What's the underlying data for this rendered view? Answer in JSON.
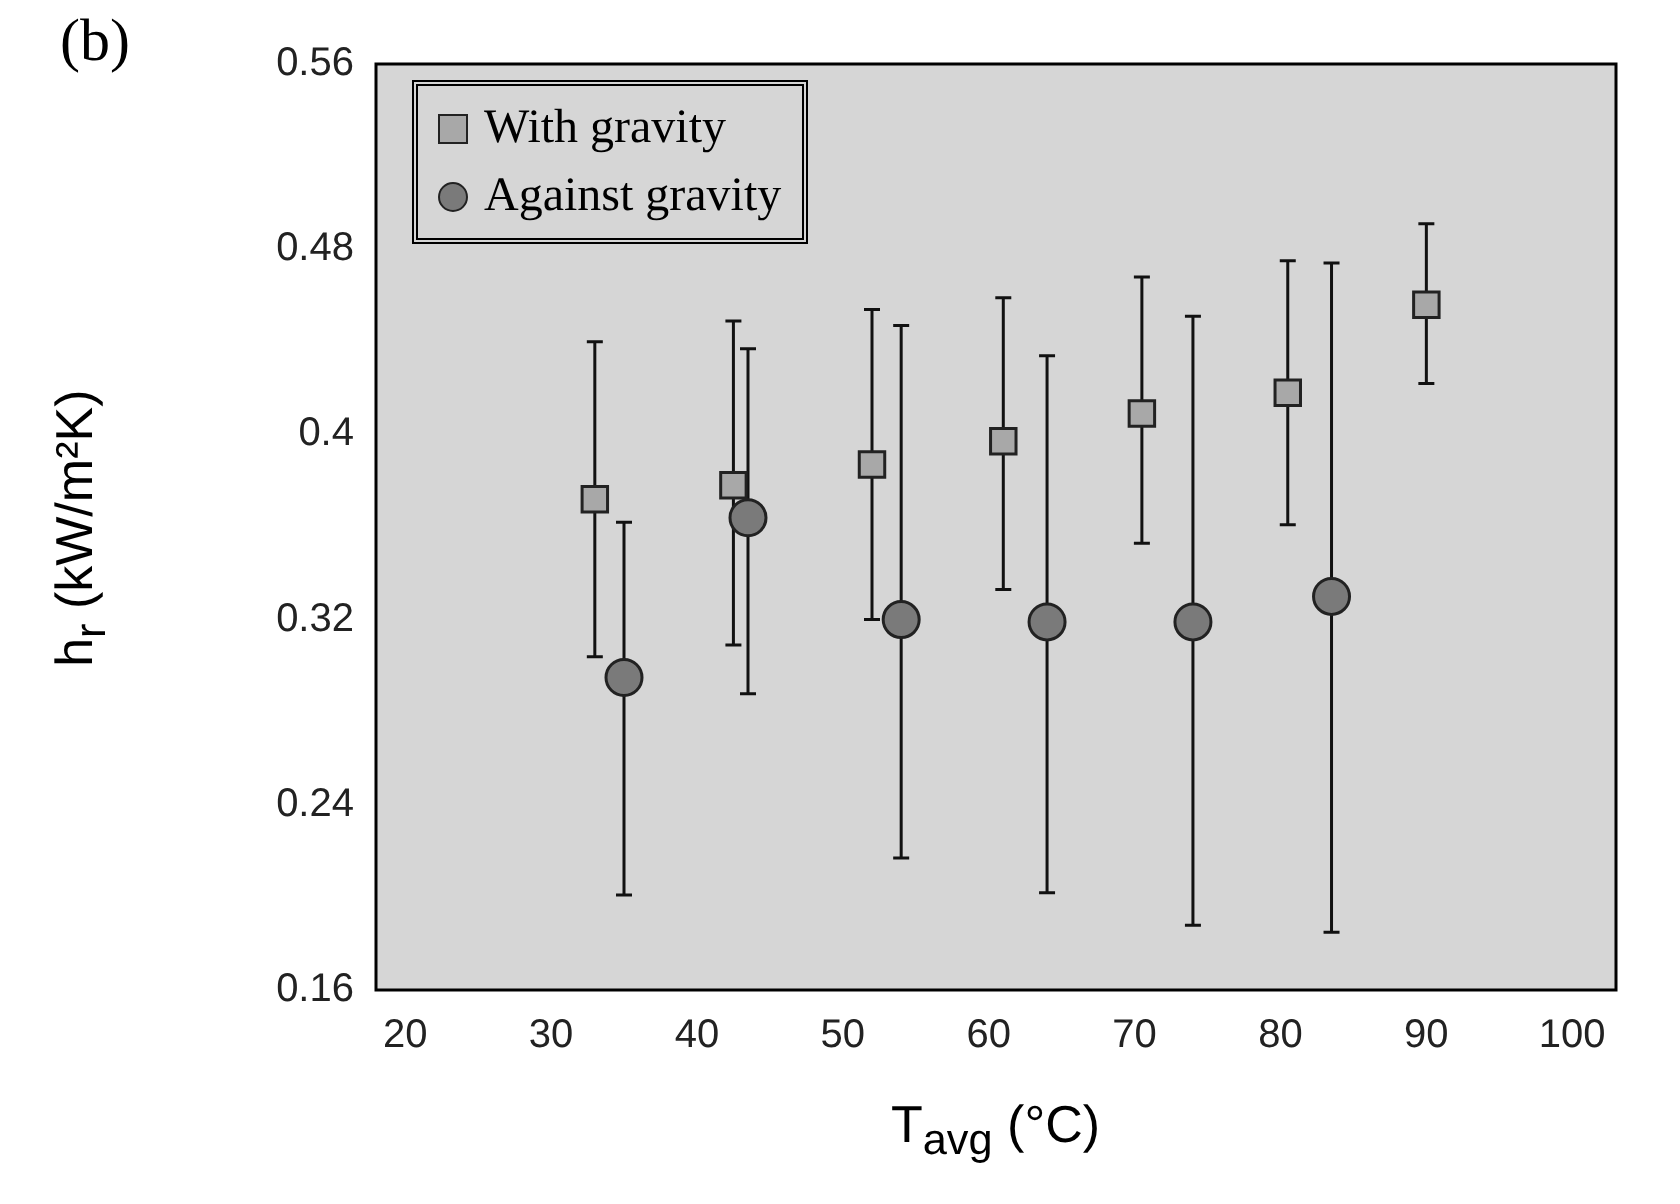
{
  "chart_data": {
    "type": "scatter",
    "title": "(b)",
    "xlabel": "T$_{avg}$ (°C)",
    "ylabel": "h$_{r}$ (kW/m²K)",
    "xlim": [
      18,
      103
    ],
    "xticks": [
      20,
      30,
      40,
      50,
      60,
      70,
      80,
      90,
      100
    ],
    "ylim": [
      0.16,
      0.56
    ],
    "yticks": [
      0.16,
      0.24,
      0.32,
      0.4,
      0.48,
      0.56
    ],
    "grid": false,
    "legend": "top left",
    "series": [
      {
        "name": "With gravity",
        "color": "#a8a8a8",
        "marker": "square",
        "x": [
          33,
          42.5,
          52,
          61,
          70.5,
          80.5,
          90
        ],
        "values": [
          0.372,
          0.378,
          0.387,
          0.397,
          0.409,
          0.418,
          0.456
        ],
        "errors": [
          [
            0.304,
            0.44
          ],
          [
            0.309,
            0.449
          ],
          [
            0.32,
            0.454
          ],
          [
            0.333,
            0.459
          ],
          [
            0.353,
            0.468
          ],
          [
            0.361,
            0.475
          ],
          [
            0.422,
            0.491
          ]
        ]
      },
      {
        "name": "Against gravity",
        "color": "#7a7a7a",
        "marker": "circle",
        "x": [
          35,
          43.5,
          54,
          64,
          74,
          83.5
        ],
        "values": [
          0.295,
          0.364,
          0.32,
          0.319,
          0.319,
          0.33
        ],
        "errors": [
          [
            0.201,
            0.362
          ],
          [
            0.288,
            0.437
          ],
          [
            0.217,
            0.447
          ],
          [
            0.202,
            0.434
          ],
          [
            0.188,
            0.451
          ],
          [
            0.185,
            0.474
          ]
        ]
      }
    ]
  }
}
